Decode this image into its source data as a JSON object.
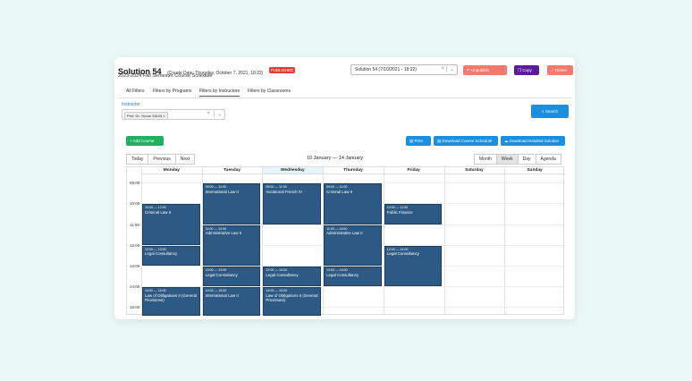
{
  "header": {
    "title": "Solution 54",
    "create_date": "(Create Date: Thursday, October 7, 2021, 18:22)",
    "badge": "PUBLISHED",
    "subtitle": "2023-2024 Fall Semester Course Schedule",
    "solution_select": "Solution 54 (7/10/2021 - 18:22)",
    "unpublish_label": "Unpublish",
    "copy_label": "Copy",
    "delete_label": "Delete"
  },
  "tabs": [
    {
      "label": "All Filters"
    },
    {
      "label": "Filters by Programs"
    },
    {
      "label": "Filters by Instructors"
    },
    {
      "label": "Filters by Classrooms"
    }
  ],
  "instructor": {
    "label": "Instructor",
    "selected": "Prof. Dr. Yunus YALIN"
  },
  "actions": {
    "search": "Search",
    "add_course": "Add Course",
    "print": "Print",
    "download_schedule": "Download Course Schedule",
    "download_detailed": "Download Detailed Solution"
  },
  "calendar": {
    "today": "Today",
    "previous": "Previous",
    "next": "Next",
    "range": "10 January — 14 January",
    "views": [
      "Month",
      "Week",
      "Day",
      "Agenda"
    ],
    "active_view": "Week",
    "days": [
      "Monday",
      "Tuesday",
      "Wednesday",
      "Thursday",
      "Friday",
      "Saturday",
      "Sunday"
    ],
    "times": [
      "09:00",
      "10:00",
      "11:00",
      "12:00",
      "13:00",
      "14:00",
      "15:00"
    ],
    "events": [
      {
        "day": 0,
        "time": "10:00 — 12:00",
        "title": "Criminal Law II",
        "start": 10,
        "end": 12
      },
      {
        "day": 0,
        "time": "12:00 — 13:00",
        "title": "Legal Consultancy",
        "start": 12,
        "end": 13
      },
      {
        "day": 0,
        "time": "14:00 — 15:00",
        "title": "Law of Obligations II (General Provisions)",
        "start": 14,
        "end": 15.4
      },
      {
        "day": 1,
        "time": "09:00 — 11:00",
        "title": "International Law II",
        "start": 9,
        "end": 11
      },
      {
        "day": 1,
        "time": "11:00 — 13:00",
        "title": "Administrative Law II",
        "start": 11,
        "end": 13
      },
      {
        "day": 1,
        "time": "13:00 — 14:00",
        "title": "Legal Consultancy",
        "start": 13,
        "end": 14
      },
      {
        "day": 1,
        "time": "14:00 — 15:00",
        "title": "International Law II",
        "start": 14,
        "end": 15.4
      },
      {
        "day": 2,
        "time": "09:00 — 11:00",
        "title": "Vocational French IV",
        "start": 9,
        "end": 11
      },
      {
        "day": 2,
        "time": "13:00 — 14:00",
        "title": "Legal Consultancy",
        "start": 13,
        "end": 14
      },
      {
        "day": 2,
        "time": "14:00 — 15:00",
        "title": "Law of Obligations II (General Provisions)",
        "start": 14,
        "end": 15.4
      },
      {
        "day": 3,
        "time": "09:00 — 11:00",
        "title": "Criminal Law II",
        "start": 9,
        "end": 11
      },
      {
        "day": 3,
        "time": "11:00 — 13:00",
        "title": "Administrative Law II",
        "start": 11,
        "end": 13
      },
      {
        "day": 3,
        "time": "13:00 — 14:00",
        "title": "Legal Consultancy",
        "start": 13,
        "end": 14
      },
      {
        "day": 4,
        "time": "10:00 — 11:00",
        "title": "Public Finance",
        "start": 10,
        "end": 11
      },
      {
        "day": 4,
        "time": "12:00 — 14:00",
        "title": "Legal Consultancy",
        "start": 12,
        "end": 14
      }
    ]
  },
  "colors": {
    "event": "#2c5a84",
    "unpublish": "#f27a6d",
    "copy": "#5b1b9c",
    "search": "#1a8fe0",
    "add": "#20b060"
  }
}
